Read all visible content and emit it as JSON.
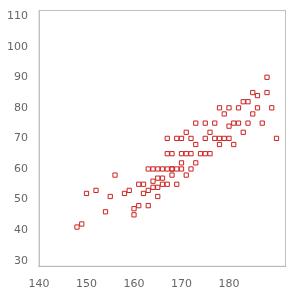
{
  "chart_data": {
    "type": "scatter",
    "x": [
      148,
      149,
      150,
      152,
      154,
      155,
      156,
      158,
      159,
      160,
      160,
      161,
      161,
      162,
      162,
      163,
      163,
      163,
      164,
      164,
      164,
      165,
      165,
      165,
      165,
      166,
      166,
      166,
      167,
      167,
      167,
      167,
      168,
      168,
      168,
      168,
      169,
      169,
      169,
      170,
      170,
      170,
      170,
      171,
      171,
      171,
      172,
      172,
      172,
      173,
      173,
      173,
      174,
      175,
      175,
      175,
      176,
      176,
      177,
      177,
      178,
      178,
      178,
      179,
      179,
      180,
      180,
      180,
      181,
      181,
      182,
      182,
      183,
      183,
      184,
      184,
      185,
      185,
      186,
      186,
      187,
      188,
      188,
      189,
      190
    ],
    "values": [
      41,
      42,
      52,
      53,
      46,
      51,
      58,
      52,
      53,
      45,
      47,
      48,
      55,
      52,
      55,
      48,
      53,
      60,
      54,
      56,
      60,
      51,
      54,
      57,
      60,
      55,
      57,
      60,
      55,
      60,
      65,
      70,
      58,
      60,
      60,
      65,
      55,
      60,
      70,
      60,
      62,
      65,
      70,
      58,
      65,
      72,
      60,
      65,
      70,
      62,
      68,
      75,
      65,
      65,
      70,
      75,
      65,
      72,
      70,
      75,
      68,
      70,
      80,
      70,
      78,
      70,
      74,
      80,
      68,
      75,
      75,
      80,
      72,
      82,
      75,
      82,
      78,
      85,
      80,
      84,
      75,
      85,
      90,
      80,
      70
    ],
    "color": "#cc2222",
    "marker": "square",
    "xlim": [
      140,
      192
    ],
    "ylim": [
      28,
      112
    ],
    "xticks": [
      140,
      150,
      160,
      170,
      180
    ],
    "yticks": [
      30,
      40,
      50,
      60,
      70,
      80,
      90,
      100,
      110
    ],
    "grid": false
  }
}
